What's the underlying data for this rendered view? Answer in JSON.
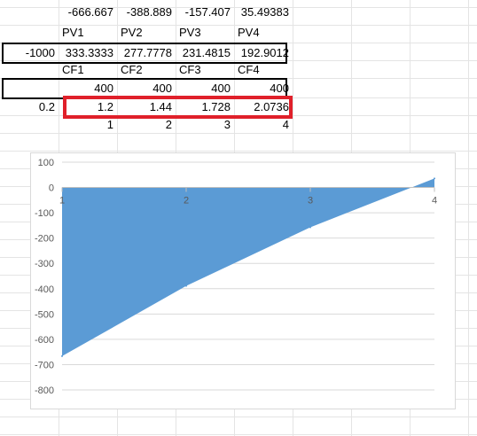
{
  "sheet": {
    "rows": [
      {
        "cells": [
          "",
          "-666.667",
          "-388.889",
          "-157.407",
          "35.49383"
        ]
      },
      {
        "cells": [
          "",
          "PV1",
          "PV2",
          "PV3",
          "PV4"
        ]
      },
      {
        "cells": [
          "-1000",
          "333.3333",
          "277.7778",
          "231.4815",
          "192.9012"
        ]
      },
      {
        "cells": [
          "",
          "CF1",
          "CF2",
          "CF3",
          "CF4"
        ]
      },
      {
        "cells": [
          "",
          "400",
          "400",
          "400",
          "400"
        ]
      },
      {
        "cells": [
          "0.2",
          "1.2",
          "1.44",
          "1.728",
          "2.0736"
        ]
      },
      {
        "cells": [
          "",
          "1",
          "2",
          "3",
          "4"
        ]
      }
    ]
  },
  "chart_data": {
    "type": "area",
    "title": "",
    "x": [
      1,
      2,
      3,
      4
    ],
    "x_tick_labels": [
      "1",
      "2",
      "3",
      "4"
    ],
    "series": [
      {
        "values": [
          -666.667,
          -388.889,
          -157.407,
          35.49383
        ]
      }
    ],
    "ylim": [
      -800,
      100
    ],
    "y_tick_labels": [
      "100",
      "0",
      "-100",
      "-200",
      "-300",
      "-400",
      "-500",
      "-600",
      "-700",
      "-800"
    ],
    "grid": true,
    "legend": "none",
    "fill_color": "#5b9bd5",
    "grid_color": "#d9d9d9"
  }
}
